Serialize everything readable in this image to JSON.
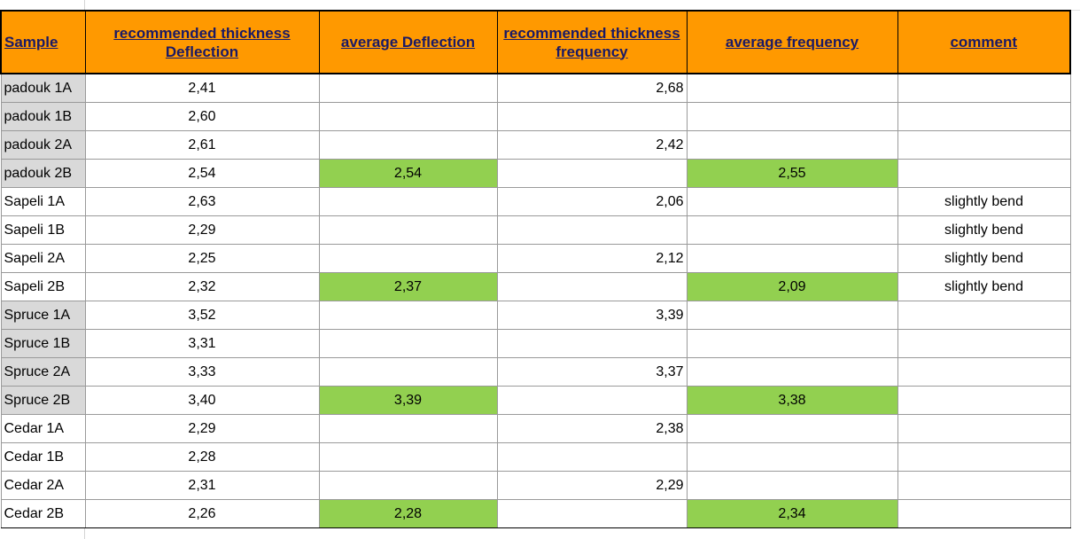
{
  "headers": {
    "sample": "Sample",
    "rec_deflection": "recommended thickness Deflection",
    "avg_deflection": "average Deflection",
    "rec_frequency": "recommended thickness frequency",
    "avg_frequency": "average frequency",
    "comment": "comment"
  },
  "colors": {
    "header_bg": "#ff9900",
    "highlight_green": "#92d050",
    "sample_gray": "#d9d9d9"
  },
  "rows": [
    {
      "sample": "padouk 1A",
      "rec_deflection": "2,41",
      "avg_deflection": "",
      "rec_frequency": "2,68",
      "avg_frequency": "",
      "comment": ""
    },
    {
      "sample": "padouk 1B",
      "rec_deflection": "2,60",
      "avg_deflection": "",
      "rec_frequency": "",
      "avg_frequency": "",
      "comment": ""
    },
    {
      "sample": "padouk 2A",
      "rec_deflection": "2,61",
      "avg_deflection": "",
      "rec_frequency": "2,42",
      "avg_frequency": "",
      "comment": ""
    },
    {
      "sample": "padouk 2B",
      "rec_deflection": "2,54",
      "avg_deflection": "2,54",
      "rec_frequency": "",
      "avg_frequency": "2,55",
      "comment": ""
    },
    {
      "sample": "Sapeli 1A",
      "rec_deflection": "2,63",
      "avg_deflection": "",
      "rec_frequency": "2,06",
      "avg_frequency": "",
      "comment": "slightly bend"
    },
    {
      "sample": "Sapeli 1B",
      "rec_deflection": "2,29",
      "avg_deflection": "",
      "rec_frequency": "",
      "avg_frequency": "",
      "comment": "slightly bend"
    },
    {
      "sample": "Sapeli 2A",
      "rec_deflection": "2,25",
      "avg_deflection": "",
      "rec_frequency": "2,12",
      "avg_frequency": "",
      "comment": "slightly bend"
    },
    {
      "sample": "Sapeli 2B",
      "rec_deflection": "2,32",
      "avg_deflection": "2,37",
      "rec_frequency": "",
      "avg_frequency": "2,09",
      "comment": "slightly bend"
    },
    {
      "sample": "Spruce 1A",
      "rec_deflection": "3,52",
      "avg_deflection": "",
      "rec_frequency": "3,39",
      "avg_frequency": "",
      "comment": ""
    },
    {
      "sample": "Spruce 1B",
      "rec_deflection": "3,31",
      "avg_deflection": "",
      "rec_frequency": "",
      "avg_frequency": "",
      "comment": ""
    },
    {
      "sample": "Spruce 2A",
      "rec_deflection": "3,33",
      "avg_deflection": "",
      "rec_frequency": "3,37",
      "avg_frequency": "",
      "comment": ""
    },
    {
      "sample": "Spruce 2B",
      "rec_deflection": "3,40",
      "avg_deflection": "3,39",
      "rec_frequency": "",
      "avg_frequency": "3,38",
      "comment": ""
    },
    {
      "sample": "Cedar 1A",
      "rec_deflection": "2,29",
      "avg_deflection": "",
      "rec_frequency": "2,38",
      "avg_frequency": "",
      "comment": ""
    },
    {
      "sample": "Cedar 1B",
      "rec_deflection": "2,28",
      "avg_deflection": "",
      "rec_frequency": "",
      "avg_frequency": "",
      "comment": ""
    },
    {
      "sample": "Cedar 2A",
      "rec_deflection": "2,31",
      "avg_deflection": "",
      "rec_frequency": "2,29",
      "avg_frequency": "",
      "comment": ""
    },
    {
      "sample": "Cedar 2B",
      "rec_deflection": "2,26",
      "avg_deflection": "2,28",
      "rec_frequency": "",
      "avg_frequency": "2,34",
      "comment": ""
    }
  ]
}
